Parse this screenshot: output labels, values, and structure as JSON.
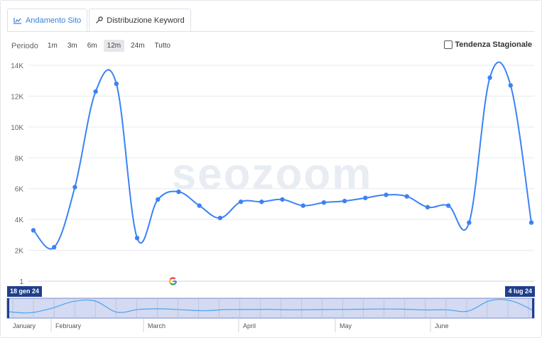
{
  "tabs": [
    {
      "label": "Andamento Sito",
      "icon": "chart-icon",
      "active": true
    },
    {
      "label": "Distribuzione Keyword",
      "icon": "key-icon",
      "active": false
    }
  ],
  "period": {
    "label": "Periodo",
    "options": [
      "1m",
      "3m",
      "6m",
      "12m",
      "24m",
      "Tutto"
    ],
    "selected": "12m"
  },
  "trend_checkbox": {
    "label": "Tendenza Stagionale",
    "checked": false
  },
  "watermark": "seozoom",
  "navigator": {
    "start_label": "18 gen 24",
    "end_label": "4 lug 24",
    "months": [
      "January",
      "February",
      "March",
      "April",
      "May",
      "June"
    ]
  },
  "chart_data": {
    "type": "line",
    "y_tick_labels": [
      "1",
      "2K",
      "4K",
      "6K",
      "8K",
      "10K",
      "12K",
      "14K"
    ],
    "ylim": [
      1,
      14000
    ],
    "grid": true,
    "line_color": "#3b82f6",
    "series": [
      {
        "values": [
          3300,
          2200,
          6100,
          12300,
          12800,
          2800,
          5300,
          5800,
          4900,
          4100,
          5150,
          5150,
          5300,
          4900,
          5100,
          5200,
          5400,
          5600,
          5500,
          4800,
          4900,
          3800,
          13200,
          12700,
          3800
        ]
      }
    ],
    "annotation": {
      "icon": "google-icon",
      "index": 7
    }
  }
}
